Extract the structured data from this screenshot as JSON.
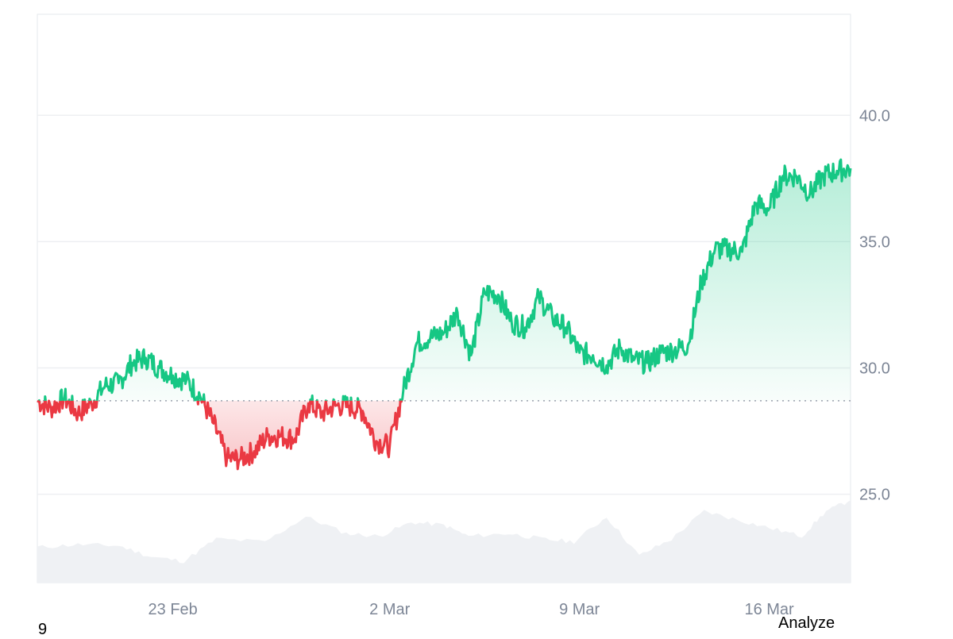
{
  "colors": {
    "up": "#16c784",
    "down": "#ea3943",
    "grid": "#eeeff2",
    "volume": "#eff1f4",
    "baseline": "#9aa1ad"
  },
  "corner_label": "9",
  "analyze_label": "Analyze",
  "chart_data": {
    "type": "area",
    "title": "",
    "xlabel": "",
    "ylabel": "",
    "x_range": [
      "2024-02-18",
      "2024-03-19"
    ],
    "ylim": [
      21.5,
      44.0
    ],
    "baseline": 28.7,
    "y_ticks": [
      {
        "value": 25.0,
        "label": "25.0"
      },
      {
        "value": 30.0,
        "label": "30.0"
      },
      {
        "value": 35.0,
        "label": "35.0"
      },
      {
        "value": 40.0,
        "label": "40.0"
      }
    ],
    "x_ticks": [
      {
        "date": "2024-02-23",
        "label": "23 Feb"
      },
      {
        "date": "2024-03-02",
        "label": "2 Mar"
      },
      {
        "date": "2024-03-09",
        "label": "9 Mar"
      },
      {
        "date": "2024-03-16",
        "label": "16 Mar"
      }
    ],
    "grid": true,
    "series": [
      {
        "points": [
          [
            "2024-02-18",
            28.7
          ],
          [
            "2024-02-18T12",
            28.4
          ],
          [
            "2024-02-19",
            28.8
          ],
          [
            "2024-02-19T12",
            28.2
          ],
          [
            "2024-02-20",
            28.6
          ],
          [
            "2024-02-20T12",
            29.3
          ],
          [
            "2024-02-21",
            29.4
          ],
          [
            "2024-02-21T12",
            30.2
          ],
          [
            "2024-02-22",
            30.4
          ],
          [
            "2024-02-22T12",
            30.0
          ],
          [
            "2024-02-23",
            29.7
          ],
          [
            "2024-02-23T12",
            29.5
          ],
          [
            "2024-02-24",
            28.9
          ],
          [
            "2024-02-24T12",
            27.8
          ],
          [
            "2024-02-25",
            26.4
          ],
          [
            "2024-02-25T12",
            26.4
          ],
          [
            "2024-02-26",
            26.7
          ],
          [
            "2024-02-26T12",
            27.3
          ],
          [
            "2024-02-27",
            27.3
          ],
          [
            "2024-02-27T12",
            27.2
          ],
          [
            "2024-02-28",
            28.6
          ],
          [
            "2024-02-28T12",
            28.2
          ],
          [
            "2024-02-29",
            28.5
          ],
          [
            "2024-02-29T12",
            28.5
          ],
          [
            "2024-03-01",
            28.3
          ],
          [
            "2024-03-01T12",
            27.1
          ],
          [
            "2024-03-02",
            26.9
          ],
          [
            "2024-03-02T12",
            29.1
          ],
          [
            "2024-03-03",
            31.0
          ],
          [
            "2024-03-03T12",
            31.2
          ],
          [
            "2024-03-04",
            31.4
          ],
          [
            "2024-03-04T12",
            32.2
          ],
          [
            "2024-03-05",
            30.5
          ],
          [
            "2024-03-05T12",
            33.0
          ],
          [
            "2024-03-06",
            32.9
          ],
          [
            "2024-03-06T12",
            31.8
          ],
          [
            "2024-03-07",
            31.6
          ],
          [
            "2024-03-07T12",
            32.8
          ],
          [
            "2024-03-08",
            32.0
          ],
          [
            "2024-03-08T12",
            31.6
          ],
          [
            "2024-03-09",
            30.6
          ],
          [
            "2024-03-09T12",
            30.5
          ],
          [
            "2024-03-10",
            30.1
          ],
          [
            "2024-03-10T12",
            30.8
          ],
          [
            "2024-03-11",
            30.3
          ],
          [
            "2024-03-11T12",
            30.2
          ],
          [
            "2024-03-12",
            30.6
          ],
          [
            "2024-03-12T12",
            30.7
          ],
          [
            "2024-03-13",
            30.9
          ],
          [
            "2024-03-13T12",
            33.4
          ],
          [
            "2024-03-14",
            34.7
          ],
          [
            "2024-03-14T12",
            34.7
          ],
          [
            "2024-03-15",
            34.6
          ],
          [
            "2024-03-15T12",
            36.5
          ],
          [
            "2024-03-16",
            36.3
          ],
          [
            "2024-03-16T12",
            37.6
          ],
          [
            "2024-03-17",
            37.6
          ],
          [
            "2024-03-17T12",
            36.9
          ],
          [
            "2024-03-18",
            37.6
          ],
          [
            "2024-03-18T12",
            37.8
          ],
          [
            "2024-03-19",
            37.9
          ]
        ]
      }
    ]
  }
}
